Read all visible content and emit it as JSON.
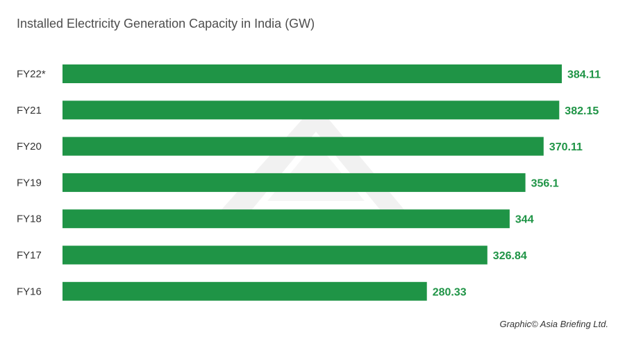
{
  "chart_data": {
    "type": "bar",
    "orientation": "horizontal",
    "title": "Installed Electricity Generation Capacity in India (GW)",
    "categories": [
      "FY22*",
      "FY21",
      "FY20",
      "FY19",
      "FY18",
      "FY17",
      "FY16"
    ],
    "values": [
      384.11,
      382.15,
      370.11,
      356.1,
      344,
      326.84,
      280.33
    ],
    "value_labels": [
      "384.11",
      "382.15",
      "370.11",
      "356.1",
      "344",
      "326.84",
      "280.33"
    ],
    "xlim": [
      0,
      384.11
    ],
    "xlabel": "",
    "ylabel": "",
    "grid": false,
    "legend": "none",
    "credit": "Graphic© Asia Briefing Ltd."
  },
  "colors": {
    "bar": "#1f9446",
    "value_text": "#1f9446",
    "watermark": "#ececec"
  }
}
